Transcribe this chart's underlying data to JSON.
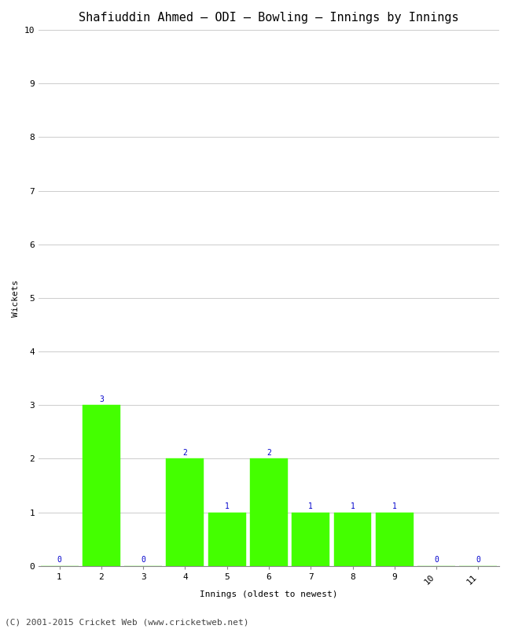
{
  "title": "Shafiuddin Ahmed – ODI – Bowling – Innings by Innings",
  "xlabel": "Innings (oldest to newest)",
  "ylabel": "Wickets",
  "categories": [
    1,
    2,
    3,
    4,
    5,
    6,
    7,
    8,
    9,
    10,
    11
  ],
  "values": [
    0,
    3,
    0,
    2,
    1,
    2,
    1,
    1,
    1,
    0,
    0
  ],
  "bar_color": "#44ff00",
  "bar_edge_color": "#44ff00",
  "label_color": "#0000cc",
  "ylim": [
    0,
    10
  ],
  "yticks": [
    0,
    1,
    2,
    3,
    4,
    5,
    6,
    7,
    8,
    9,
    10
  ],
  "background_color": "#ffffff",
  "grid_color": "#cccccc",
  "title_fontsize": 11,
  "axis_label_fontsize": 8,
  "tick_fontsize": 8,
  "bar_label_fontsize": 7,
  "footer": "(C) 2001-2015 Cricket Web (www.cricketweb.net)",
  "footer_color": "#444444",
  "footer_fontsize": 8
}
